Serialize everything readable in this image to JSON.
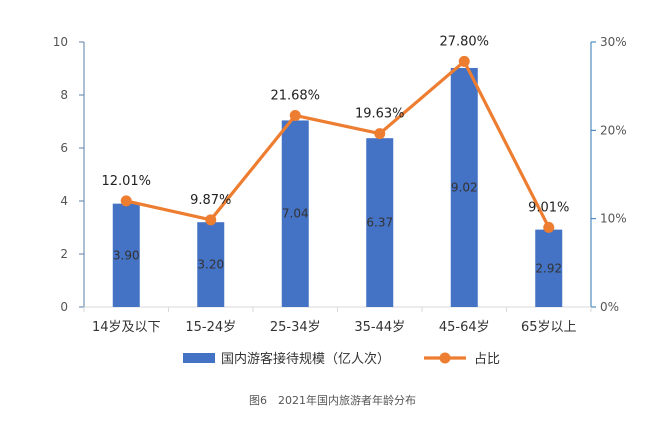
{
  "colors": {
    "bar": "#4472C4",
    "line": "#ED7D31",
    "axis_left": "#5B7FA6",
    "axis_right": "#2E75B6",
    "gridline": "#D9D9D9",
    "tick_text": "#555555",
    "bar_label_text": "#333333"
  },
  "chart_data": {
    "type": "bar",
    "categories": [
      "14岁及以下",
      "15-24岁",
      "25-34岁",
      "35-44岁",
      "45-64岁",
      "65岁以上"
    ],
    "series": [
      {
        "name": "国内游客接待规模（亿人次）",
        "type": "bar",
        "axis": "left",
        "values": [
          3.9,
          3.2,
          7.04,
          6.37,
          9.02,
          2.92
        ],
        "labels": [
          "3.90",
          "3.20",
          "7.04",
          "6.37",
          "9.02",
          "2.92"
        ]
      },
      {
        "name": "占比",
        "type": "line",
        "axis": "right",
        "values": [
          12.01,
          9.87,
          21.68,
          19.63,
          27.8,
          9.01
        ],
        "labels": [
          "12.01%",
          "9.87%",
          "21.68%",
          "19.63%",
          "27.80%",
          "9.01%"
        ]
      }
    ],
    "y_left": {
      "min": 0,
      "max": 10,
      "ticks": [
        "0",
        "2",
        "4",
        "6",
        "8",
        "10"
      ]
    },
    "y_right": {
      "min": 0,
      "max": 30,
      "ticks": [
        "0%",
        "10%",
        "20%",
        "30%"
      ]
    },
    "legend_position": "bottom",
    "grid": false
  },
  "caption": "图6　2021年国内旅游者年龄分布"
}
